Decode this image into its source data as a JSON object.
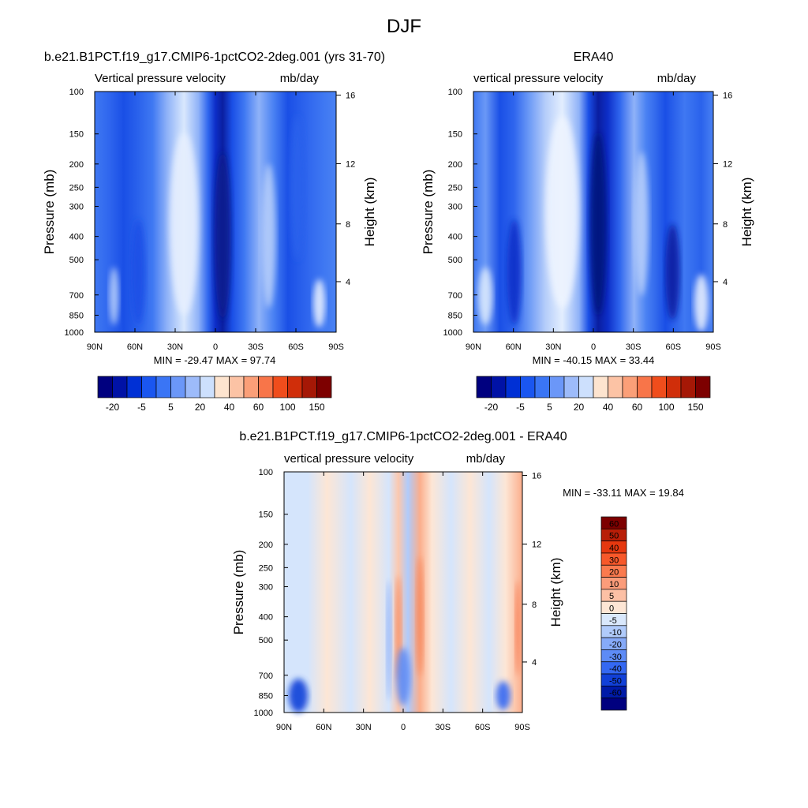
{
  "page": {
    "title": "DJF"
  },
  "chart_data": [
    {
      "type": "heatmap",
      "title": "b.e21.B1PCT.f19_g17.CMIP6-1pctCO2-2deg.001 (yrs 31-70)",
      "subtitle_left": "Vertical pressure velocity",
      "subtitle_right": "mb/day",
      "xlabel": "",
      "ylabel": "Pressure (mb)",
      "ylabel_right": "Height (km)",
      "x_ticks": [
        "90N",
        "60N",
        "30N",
        "0",
        "30S",
        "60S",
        "90S"
      ],
      "y_ticks": [
        "100",
        "150",
        "200",
        "250",
        "300",
        "400",
        "500",
        "700",
        "850",
        "1000"
      ],
      "y_right_ticks": [
        "16",
        "12",
        "8",
        "4"
      ],
      "stats": "MIN = -29.47  MAX =  97.74",
      "colorbar": {
        "orientation": "horizontal",
        "tick_labels": [
          "-20",
          "-5",
          "5",
          "20",
          "40",
          "60",
          "100",
          "150"
        ],
        "colors": [
          "#00007f",
          "#0012a6",
          "#0030d5",
          "#1a56f0",
          "#3a75f5",
          "#6b97f8",
          "#9dbbfa",
          "#cde0fd",
          "#fde4cf",
          "#fcc3a5",
          "#fb9f78",
          "#f87549",
          "#f04d1c",
          "#d02e0a",
          "#a51806",
          "#7d0000"
        ]
      }
    },
    {
      "type": "heatmap",
      "title": "ERA40",
      "subtitle_left": "vertical pressure velocity",
      "subtitle_right": "mb/day",
      "xlabel": "",
      "ylabel": "Pressure (mb)",
      "ylabel_right": "Height (km)",
      "x_ticks": [
        "90N",
        "60N",
        "30N",
        "0",
        "30S",
        "60S",
        "90S"
      ],
      "y_ticks": [
        "100",
        "150",
        "200",
        "250",
        "300",
        "400",
        "500",
        "700",
        "850",
        "1000"
      ],
      "y_right_ticks": [
        "16",
        "12",
        "8",
        "4"
      ],
      "stats": "MIN = -40.15  MAX =  33.44",
      "colorbar": {
        "orientation": "horizontal",
        "tick_labels": [
          "-20",
          "-5",
          "5",
          "20",
          "40",
          "60",
          "100",
          "150"
        ],
        "colors": [
          "#00007f",
          "#0012a6",
          "#0030d5",
          "#1a56f0",
          "#3a75f5",
          "#6b97f8",
          "#9dbbfa",
          "#cde0fd",
          "#fde4cf",
          "#fcc3a5",
          "#fb9f78",
          "#f87549",
          "#f04d1c",
          "#d02e0a",
          "#a51806",
          "#7d0000"
        ]
      }
    },
    {
      "type": "heatmap",
      "title": "b.e21.B1PCT.f19_g17.CMIP6-1pctCO2-2deg.001 - ERA40",
      "subtitle_left": "vertical pressure velocity",
      "subtitle_right": "mb/day",
      "xlabel": "",
      "ylabel": "Pressure (mb)",
      "ylabel_right": "Height (km)",
      "x_ticks": [
        "90N",
        "60N",
        "30N",
        "0",
        "30S",
        "60S",
        "90S"
      ],
      "y_ticks": [
        "100",
        "150",
        "200",
        "250",
        "300",
        "400",
        "500",
        "700",
        "850",
        "1000"
      ],
      "y_right_ticks": [
        "16",
        "12",
        "8",
        "4"
      ],
      "stats": "MIN = -33.11  MAX =  19.84",
      "colorbar": {
        "orientation": "vertical",
        "tick_labels": [
          "60",
          "50",
          "40",
          "30",
          "20",
          "10",
          "5",
          "0",
          "-5",
          "-10",
          "-20",
          "-30",
          "-40",
          "-50",
          "-60"
        ],
        "colors": [
          "#7d0000",
          "#b81e08",
          "#e6380f",
          "#f7582a",
          "#fa7a4e",
          "#fb9c7a",
          "#fcc0a5",
          "#fde6d5",
          "#d9e8fc",
          "#b0cbfb",
          "#86aaf8",
          "#5d8bf6",
          "#3468f2",
          "#1140d8",
          "#001aa8",
          "#00007f"
        ]
      }
    }
  ]
}
